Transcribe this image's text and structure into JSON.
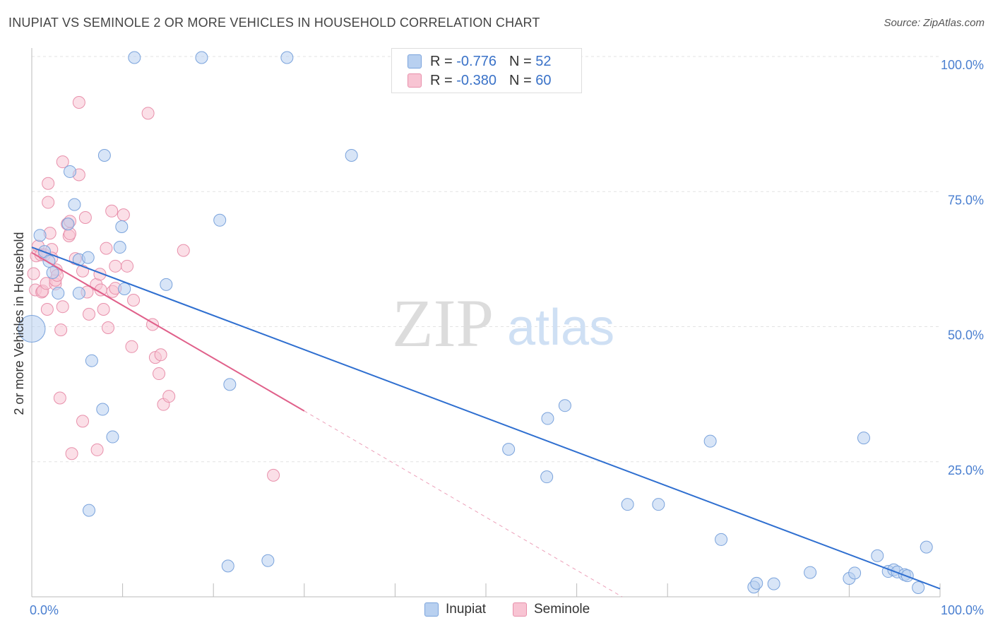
{
  "header": {
    "title": "INUPIAT VS SEMINOLE 2 OR MORE VEHICLES IN HOUSEHOLD CORRELATION CHART",
    "source": "Source: ZipAtlas.com"
  },
  "watermark": {
    "zip": "ZIP",
    "atlas": "atlas"
  },
  "legend_stats": [
    {
      "r_label": "R =",
      "r_value": "-0.776",
      "n_label": "N =",
      "n_value": "52"
    },
    {
      "r_label": "R =",
      "r_value": "-0.380",
      "n_label": "N =",
      "n_value": "60"
    }
  ],
  "chart_data": {
    "type": "scatter",
    "ylabel": "2 or more Vehicles in Household",
    "xlabel": "",
    "xlim": [
      0,
      100
    ],
    "ylim": [
      0,
      100
    ],
    "x_tick_labels": [
      "0.0%",
      "100.0%"
    ],
    "y_tick_labels": [
      "100.0%",
      "75.0%",
      "50.0%",
      "25.0%"
    ],
    "y_tick_values": [
      100,
      75,
      50,
      25
    ],
    "grid": true,
    "legend_position": "bottom",
    "colors": {
      "inupiat_fill": "#b8d0f0",
      "inupiat_stroke": "#7aa3dc",
      "inupiat_line": "#2f6fd0",
      "seminole_fill": "#f8c4d3",
      "seminole_stroke": "#e890ab",
      "seminole_line": "#e0608a",
      "grid": "#e3e3e3",
      "axis": "#bbbbbb",
      "tick_text": "#4a7fd0"
    },
    "series": [
      {
        "name": "Inupiat",
        "trend": {
          "x0": 0,
          "y0": 64.7,
          "x1": 100,
          "y1": 1.5
        },
        "points": [
          [
            0,
            49.6
          ],
          [
            0.9,
            66.9
          ],
          [
            1.4,
            63.9
          ],
          [
            1.9,
            62.1
          ],
          [
            2.3,
            60.0
          ],
          [
            2.9,
            56.2
          ],
          [
            4.2,
            78.7
          ],
          [
            4.7,
            72.6
          ],
          [
            4.0,
            69.0
          ],
          [
            5.2,
            62.4
          ],
          [
            5.2,
            56.2
          ],
          [
            6.2,
            62.8
          ],
          [
            6.3,
            16.0
          ],
          [
            6.6,
            43.7
          ],
          [
            7.8,
            34.7
          ],
          [
            8.0,
            81.7
          ],
          [
            8.9,
            29.6
          ],
          [
            9.7,
            64.7
          ],
          [
            9.9,
            68.5
          ],
          [
            10.2,
            57.0
          ],
          [
            11.3,
            99.8
          ],
          [
            14.8,
            57.8
          ],
          [
            18.7,
            99.8
          ],
          [
            20.7,
            69.7
          ],
          [
            21.6,
            5.7
          ],
          [
            21.8,
            39.3
          ],
          [
            26.0,
            6.7
          ],
          [
            28.1,
            99.8
          ],
          [
            35.2,
            81.7
          ],
          [
            52.5,
            27.3
          ],
          [
            56.7,
            22.2
          ],
          [
            56.8,
            33.0
          ],
          [
            58.7,
            35.4
          ],
          [
            65.6,
            17.1
          ],
          [
            69.0,
            17.1
          ],
          [
            74.7,
            28.8
          ],
          [
            75.9,
            10.6
          ],
          [
            79.5,
            1.8
          ],
          [
            79.8,
            2.5
          ],
          [
            81.7,
            2.4
          ],
          [
            85.7,
            4.5
          ],
          [
            90.0,
            3.4
          ],
          [
            90.6,
            4.4
          ],
          [
            91.6,
            29.4
          ],
          [
            93.1,
            7.6
          ],
          [
            94.3,
            4.7
          ],
          [
            94.9,
            5.0
          ],
          [
            95.3,
            4.6
          ],
          [
            96.1,
            4.1
          ],
          [
            96.4,
            3.9
          ],
          [
            97.6,
            1.7
          ],
          [
            98.5,
            9.2
          ]
        ]
      },
      {
        "name": "Seminole",
        "trend": {
          "x0": 0,
          "y0": 63.7,
          "x1": 30,
          "y1": 34.4,
          "dash_x1": 65,
          "dash_y1": 0
        },
        "points": [
          [
            0.2,
            59.8
          ],
          [
            0.4,
            56.8
          ],
          [
            0.5,
            63.1
          ],
          [
            0.7,
            64.9
          ],
          [
            1.0,
            63.3
          ],
          [
            1.1,
            56.4
          ],
          [
            1.2,
            56.6
          ],
          [
            1.4,
            63.3
          ],
          [
            1.6,
            58.0
          ],
          [
            1.7,
            53.2
          ],
          [
            1.8,
            76.5
          ],
          [
            1.8,
            73.0
          ],
          [
            2.0,
            67.3
          ],
          [
            2.2,
            64.3
          ],
          [
            2.2,
            62.7
          ],
          [
            2.6,
            57.9
          ],
          [
            2.6,
            58.6
          ],
          [
            2.7,
            60.5
          ],
          [
            2.8,
            59.5
          ],
          [
            3.1,
            36.8
          ],
          [
            3.2,
            49.4
          ],
          [
            3.4,
            53.7
          ],
          [
            3.4,
            80.5
          ],
          [
            3.9,
            69.0
          ],
          [
            4.1,
            66.8
          ],
          [
            4.2,
            69.5
          ],
          [
            4.2,
            67.2
          ],
          [
            4.4,
            26.5
          ],
          [
            4.8,
            62.6
          ],
          [
            5.2,
            78.1
          ],
          [
            5.2,
            91.5
          ],
          [
            5.6,
            60.3
          ],
          [
            5.6,
            32.5
          ],
          [
            5.9,
            70.2
          ],
          [
            6.1,
            56.4
          ],
          [
            6.3,
            52.3
          ],
          [
            7.1,
            57.8
          ],
          [
            7.2,
            27.2
          ],
          [
            7.5,
            59.7
          ],
          [
            7.6,
            56.8
          ],
          [
            7.9,
            53.2
          ],
          [
            8.2,
            64.5
          ],
          [
            8.4,
            49.8
          ],
          [
            8.8,
            71.4
          ],
          [
            8.9,
            56.5
          ],
          [
            9.2,
            57.1
          ],
          [
            10.1,
            70.7
          ],
          [
            10.5,
            61.2
          ],
          [
            11.0,
            46.3
          ],
          [
            11.2,
            54.9
          ],
          [
            12.8,
            89.5
          ],
          [
            13.3,
            50.4
          ],
          [
            13.6,
            44.3
          ],
          [
            14.0,
            41.3
          ],
          [
            14.2,
            44.8
          ],
          [
            14.5,
            35.6
          ],
          [
            15.1,
            37.1
          ],
          [
            16.7,
            64.1
          ],
          [
            26.6,
            22.5
          ],
          [
            9.2,
            61.2
          ]
        ]
      }
    ]
  },
  "legend": {
    "inupiat": "Inupiat",
    "seminole": "Seminole"
  }
}
